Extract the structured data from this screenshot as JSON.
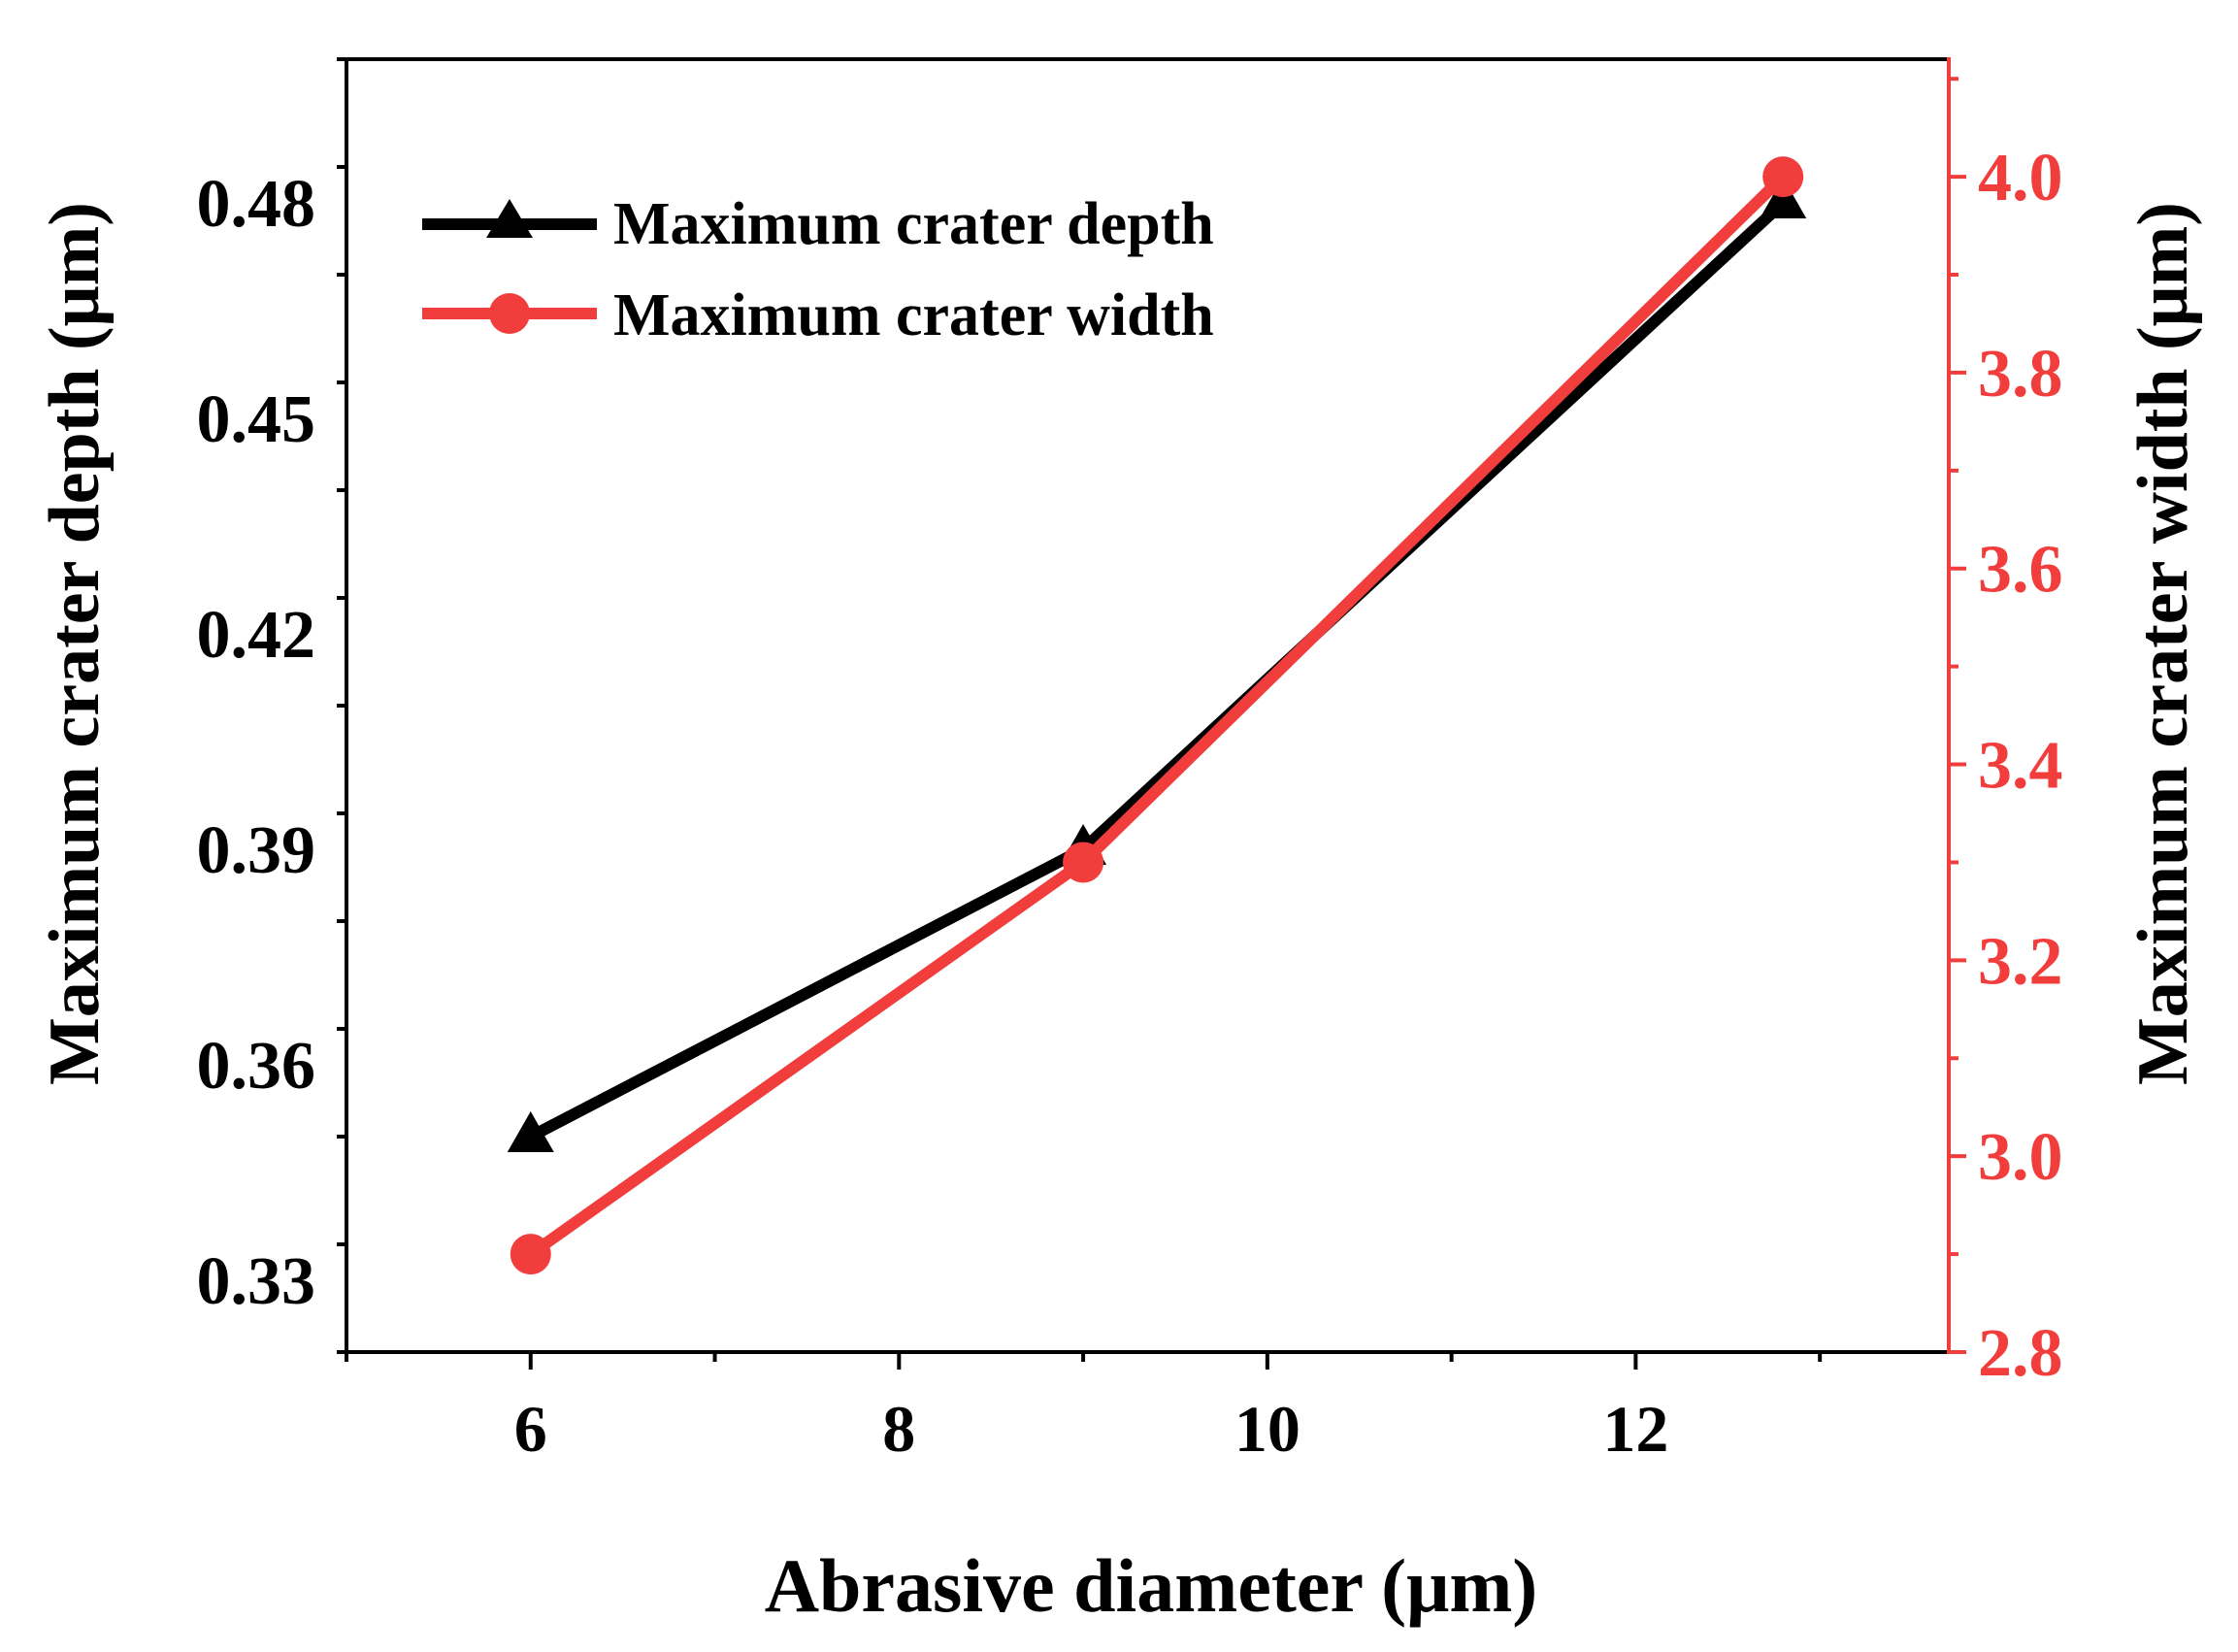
{
  "chart_data": {
    "type": "line",
    "title": "",
    "xlabel": "Abrasive diameter (μm)",
    "ylabel": "Maximum crater depth (μm)",
    "y2label": "Maximum crater width (μm)",
    "xlim": [
      5,
      13.7
    ],
    "ylim": [
      0.32,
      0.5
    ],
    "y2lim": [
      2.8,
      4.12
    ],
    "xticks": [
      6,
      8,
      10,
      12
    ],
    "xtick_labels": [
      "6",
      "8",
      "10",
      "12"
    ],
    "yticks": [
      0.33,
      0.36,
      0.39,
      0.42,
      0.45,
      0.48
    ],
    "ytick_labels": [
      "0.33",
      "0.36",
      "0.39",
      "0.42",
      "0.45",
      "0.48"
    ],
    "y2ticks": [
      2.8,
      3.0,
      3.2,
      3.4,
      3.6,
      3.8,
      4.0
    ],
    "y2tick_labels": [
      "2.8",
      "3.0",
      "3.2",
      "3.4",
      "3.6",
      "3.8",
      "4.0"
    ],
    "legend_position": "top-left",
    "series": [
      {
        "name": "Maximum crater depth",
        "axis": "left",
        "marker": "triangle",
        "color": "#000000",
        "x": [
          6,
          9,
          12.8
        ],
        "values": [
          0.35,
          0.39,
          0.48
        ]
      },
      {
        "name": "Maximum crater width",
        "axis": "right",
        "marker": "circle",
        "color": "#f23d3d",
        "x": [
          6,
          9,
          12.8
        ],
        "values": [
          2.9,
          3.3,
          4.0
        ]
      }
    ]
  }
}
